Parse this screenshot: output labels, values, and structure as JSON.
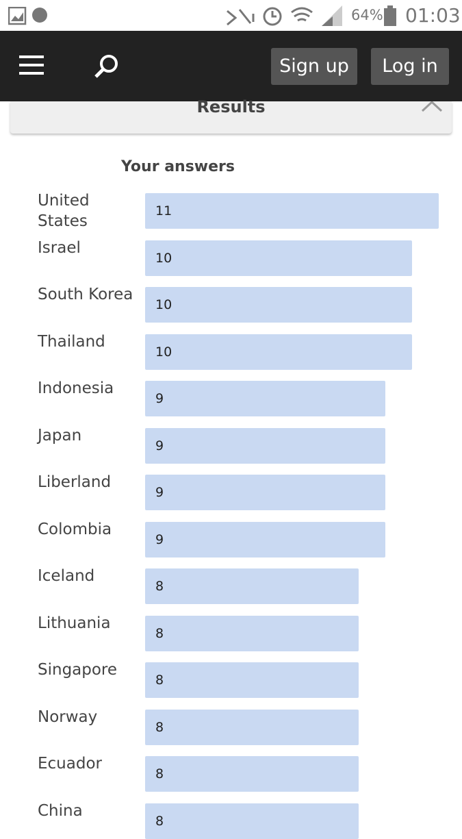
{
  "status_bar": {
    "battery": "64%",
    "time": "01:03"
  },
  "nav": {
    "sign_up": "Sign up",
    "log_in": "Log in"
  },
  "results_header": "Results",
  "chart_data": {
    "type": "bar",
    "title": "Your answers",
    "categories": [
      "United States",
      "Israel",
      "South Korea",
      "Thailand",
      "Indonesia",
      "Japan",
      "Liberland",
      "Colombia",
      "Iceland",
      "Lithuania",
      "Singapore",
      "Norway",
      "Ecuador",
      "China"
    ],
    "values": [
      11,
      10,
      10,
      10,
      9,
      9,
      9,
      9,
      8,
      8,
      8,
      8,
      8,
      8
    ],
    "color": "#c9d9f2",
    "orientation": "horizontal"
  }
}
